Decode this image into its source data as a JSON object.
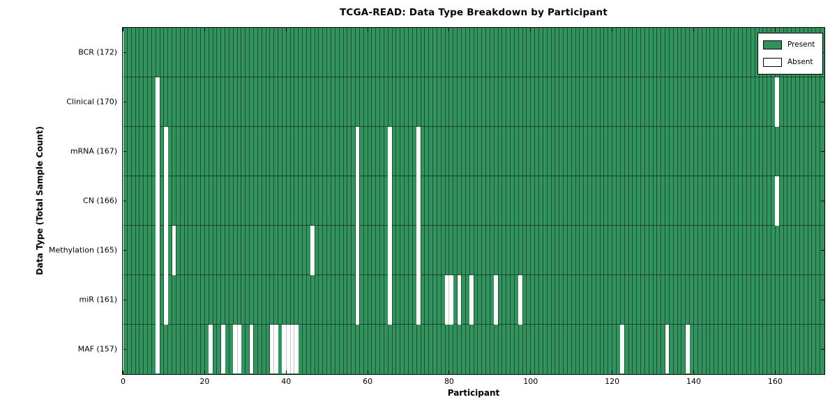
{
  "chart_data": {
    "type": "heatmap",
    "title": "TCGA-READ: Data Type Breakdown by Participant",
    "xlabel": "Participant",
    "ylabel": "Data Type (Total Sample Count)",
    "n_participants": 172,
    "xlim": [
      0,
      172
    ],
    "x_ticks": [
      0,
      20,
      40,
      60,
      80,
      100,
      120,
      140,
      160
    ],
    "grid": "cell-edges",
    "legend": {
      "position": "upper right",
      "entries": [
        {
          "label": "Present",
          "color": "#33925D"
        },
        {
          "label": "Absent",
          "color": "#FFFFFF"
        }
      ]
    },
    "colors": {
      "present": "#33925D",
      "absent": "#FFFFFF",
      "cell_edge": "rgba(0,0,0,0.45)",
      "spine": "#000000"
    },
    "rows": [
      {
        "label": "BCR (172)",
        "data_type": "BCR",
        "present_count": 172,
        "absent_participants": []
      },
      {
        "label": "Clinical (170)",
        "data_type": "Clinical",
        "present_count": 170,
        "absent_participants": [
          8,
          160
        ]
      },
      {
        "label": "mRNA (167)",
        "data_type": "mRNA",
        "present_count": 167,
        "absent_participants": [
          8,
          10,
          57,
          65,
          72
        ]
      },
      {
        "label": "CN (166)",
        "data_type": "CN",
        "present_count": 166,
        "absent_participants": [
          8,
          10,
          57,
          65,
          72,
          160
        ]
      },
      {
        "label": "Methylation (165)",
        "data_type": "Methylation",
        "present_count": 165,
        "absent_participants": [
          8,
          10,
          12,
          46,
          57,
          65,
          72
        ]
      },
      {
        "label": "miR (161)",
        "data_type": "miR",
        "present_count": 161,
        "absent_participants": [
          8,
          10,
          57,
          65,
          72,
          79,
          80,
          82,
          85,
          91,
          97
        ]
      },
      {
        "label": "MAF (157)",
        "data_type": "MAF",
        "present_count": 157,
        "absent_participants": [
          8,
          21,
          24,
          27,
          28,
          31,
          36,
          37,
          39,
          40,
          41,
          42,
          122,
          133,
          138
        ]
      }
    ]
  }
}
